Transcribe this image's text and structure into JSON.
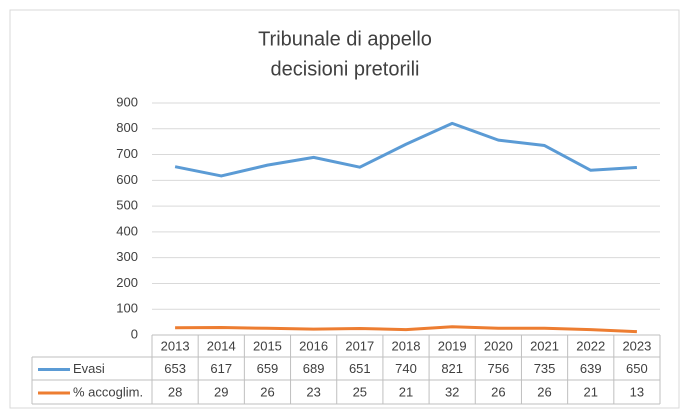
{
  "chart_data": {
    "type": "line",
    "title": [
      "Tribunale di appello",
      "decisioni pretorili"
    ],
    "categories": [
      "2013",
      "2014",
      "2015",
      "2016",
      "2017",
      "2018",
      "2019",
      "2020",
      "2021",
      "2022",
      "2023"
    ],
    "series": [
      {
        "name": "Evasi",
        "color": "#5b9bd5",
        "values": [
          653,
          617,
          659,
          689,
          651,
          740,
          821,
          756,
          735,
          639,
          650
        ]
      },
      {
        "name": "% accoglim.",
        "color": "#ed7d31",
        "values": [
          28,
          29,
          26,
          23,
          25,
          21,
          32,
          26,
          26,
          21,
          13
        ]
      }
    ],
    "ylim": [
      0,
      900
    ],
    "yticks": [
      0,
      100,
      200,
      300,
      400,
      500,
      600,
      700,
      800,
      900
    ],
    "grid": true,
    "legend": "table"
  }
}
